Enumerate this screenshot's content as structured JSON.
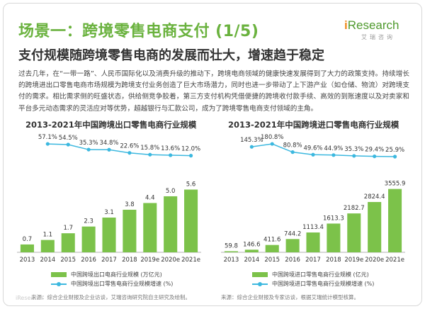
{
  "header": {
    "slide_title": "场景一：跨境零售电商支付 (1/5)",
    "subtitle": "支付规模随跨境零售电商的发展而壮大，增速趋于稳定",
    "body": "过去几年，在“一带一路”、人民币国际化以及消费升级的推动下，跨境电商领域的健康快速发展得到了大力的政策支持。持续增长的跨境进出口零售电商市场规模为跨境支付业务创造了巨大市场潜力，同时也进一步带动了上下游产业（如仓储、物流）对跨境支付的需求。相比需求侧的旺盛状态，供给侧竞争胶着，第三方支付机构凭借便捷的跨境收付款手续、高效的到账速度以及对卖家和平台多元动态需求的灵活应对等优势，超越银行与汇款公司，成为了跨境零售电商支付领域的主角。"
  },
  "brand": {
    "logo_i": "i",
    "logo_rest": "Research",
    "sub": "艾瑞咨询"
  },
  "colors": {
    "accent": "#6ab23e",
    "bar": "#7cc24a",
    "line": "#3cb8df"
  },
  "chart_data": [
    {
      "type": "bar",
      "title": "2013-2021年中国跨境出口零售电商行业规模",
      "categories": [
        "2013",
        "2014",
        "2015",
        "2016",
        "2017",
        "2018",
        "2019e",
        "2020e",
        "2021e"
      ],
      "series": [
        {
          "name": "中国跨境出口电商行业规模 (万亿元)",
          "values": [
            0.7,
            1.1,
            1.7,
            2.3,
            3.1,
            3.8,
            4.4,
            5.0,
            5.6
          ],
          "labels": [
            "0.7",
            "1.1",
            "1.7",
            "2.3",
            "3.1",
            "3.8",
            "4.4",
            "5.0",
            "5.6"
          ]
        },
        {
          "name": "中国跨境出口零售电商行业规模增速 (%)",
          "type": "line",
          "values": [
            null,
            57.1,
            54.5,
            35.3,
            34.8,
            22.6,
            15.8,
            13.6,
            12.0
          ],
          "labels": [
            "",
            "57.1%",
            "54.5%",
            "35.3%",
            "34.8%",
            "22.6%",
            "15.8%",
            "13.6%",
            "12.0%"
          ]
        }
      ],
      "ylim": [
        0,
        6.2
      ]
    },
    {
      "type": "bar",
      "title": "2013-2021年中国跨境进口零售电商行业规模",
      "categories": [
        "2013",
        "2014",
        "2015",
        "2016",
        "2017",
        "2018",
        "2019e",
        "2020e",
        "2021e"
      ],
      "series": [
        {
          "name": "中国跨境进口零售电商行业规模 (亿元)",
          "values": [
            59.8,
            146.6,
            411.6,
            744.2,
            1113.4,
            1613.3,
            2182.7,
            2824.4,
            3555.9
          ],
          "labels": [
            "59.8",
            "146.6",
            "411.6",
            "744.2",
            "1113.4",
            "1613.3",
            "2182.7",
            "2824.4",
            "3555.9"
          ]
        },
        {
          "name": "中国跨境进口零售电商行业规模增速 (%)",
          "type": "line",
          "values": [
            null,
            145.3,
            180.8,
            80.8,
            49.6,
            44.9,
            35.3,
            29.4,
            25.9
          ],
          "labels": [
            "",
            "145.3%",
            "180.8%",
            "80.8%",
            "49.6%",
            "44.9%",
            "35.3%",
            "29.4%",
            "25.9%"
          ]
        }
      ],
      "ylim": [
        0,
        3900
      ]
    }
  ],
  "footer": {
    "source_left": "来源：综合企业财报及企业访谈，艾瑞咨询研究院自主研究及绘制。",
    "source_right": "来源：综合企业财报及专家访谈，根据艾瑞统计模型核算。",
    "watermark": "iResearch"
  }
}
